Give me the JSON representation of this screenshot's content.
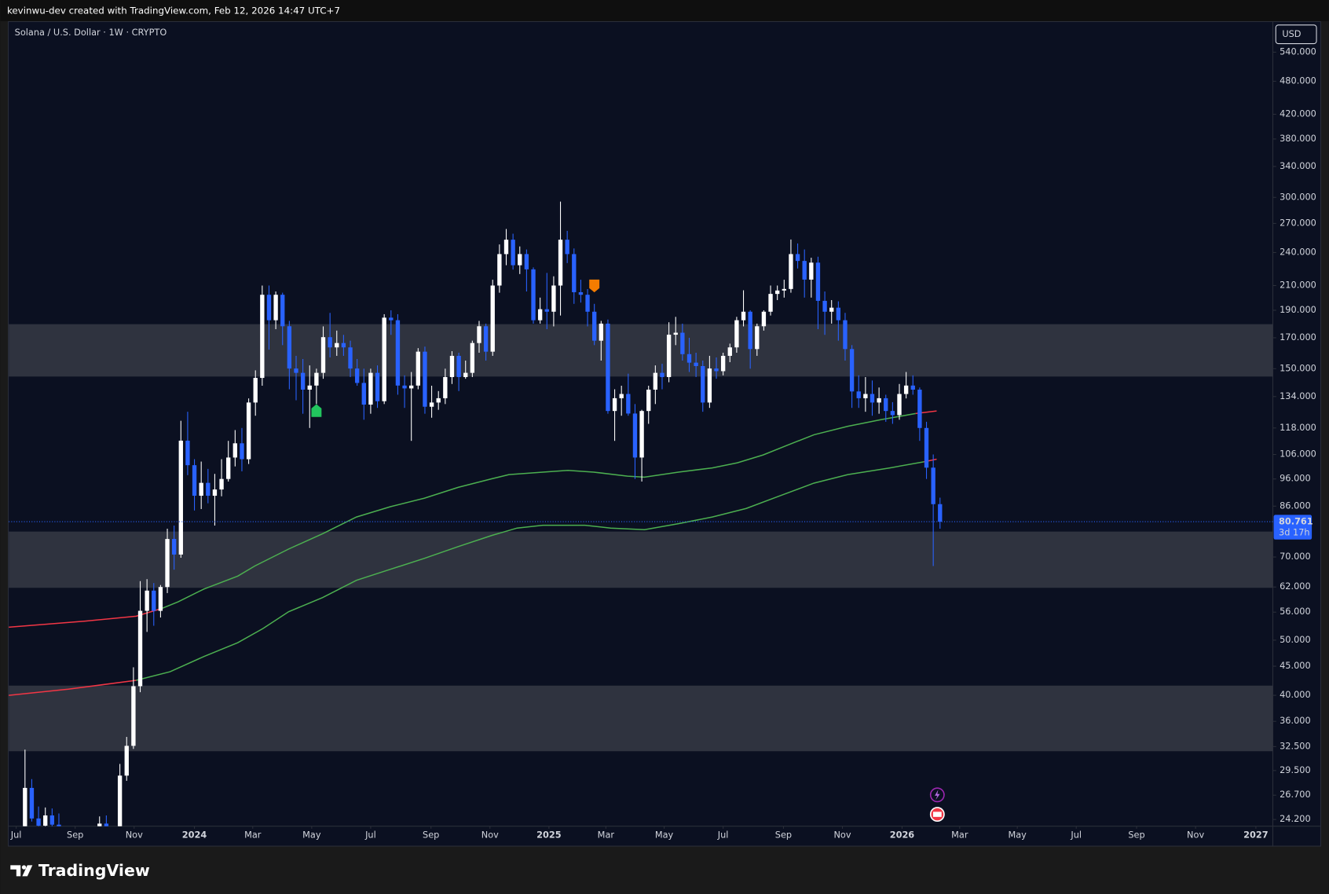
{
  "header": {
    "caption": "kevinwu-dev created with TradingView.com, Feb 12, 2026 14:47 UTC+7"
  },
  "footer": {
    "brand": "TradingView"
  },
  "chart_data": {
    "type": "candlestick",
    "title": "Solana / U.S. Dollar · 1W · CRYPTO",
    "currency": "USD",
    "log": true,
    "grid": false,
    "up_color": "#ffffff",
    "down_color": "#2962ff",
    "zone_color": "#2f333f",
    "ylim": [
      23.55,
      610
    ],
    "xlim": [
      -27.4,
      159.1
    ],
    "yticks": [
      {
        "value": 540,
        "label": "540.000"
      },
      {
        "value": 480,
        "label": "480.000"
      },
      {
        "value": 420,
        "label": "420.000"
      },
      {
        "value": 380,
        "label": "380.000"
      },
      {
        "value": 340,
        "label": "340.000"
      },
      {
        "value": 300,
        "label": "300.000"
      },
      {
        "value": 270,
        "label": "270.000"
      },
      {
        "value": 240,
        "label": "240.000"
      },
      {
        "value": 210,
        "label": "210.000"
      },
      {
        "value": 190,
        "label": "190.000"
      },
      {
        "value": 170,
        "label": "170.000"
      },
      {
        "value": 150,
        "label": "150.000"
      },
      {
        "value": 134,
        "label": "134.000"
      },
      {
        "value": 118,
        "label": "118.000"
      },
      {
        "value": 106,
        "label": "106.000"
      },
      {
        "value": 96,
        "label": "96.000"
      },
      {
        "value": 86,
        "label": "86.000"
      },
      {
        "value": 70,
        "label": "70.000"
      },
      {
        "value": 62,
        "label": "62.000"
      },
      {
        "value": 56,
        "label": "56.000"
      },
      {
        "value": 50,
        "label": "50.000"
      },
      {
        "value": 45,
        "label": "45.000"
      },
      {
        "value": 40,
        "label": "40.000"
      },
      {
        "value": 36,
        "label": "36.000"
      },
      {
        "value": 32.5,
        "label": "32.500"
      },
      {
        "value": 29.5,
        "label": "29.500"
      },
      {
        "value": 26.7,
        "label": "26.700"
      },
      {
        "value": 24.2,
        "label": "24.200"
      }
    ],
    "xticks": [
      {
        "value": -26.3,
        "label": "Jul"
      },
      {
        "value": -17.6,
        "label": "Sep"
      },
      {
        "value": -8.9,
        "label": "Nov"
      },
      {
        "value": 0,
        "label": "2024"
      },
      {
        "value": 8.6,
        "label": "Mar"
      },
      {
        "value": 17.3,
        "label": "May"
      },
      {
        "value": 26,
        "label": "Jul"
      },
      {
        "value": 34.9,
        "label": "Sep"
      },
      {
        "value": 43.6,
        "label": "Nov"
      },
      {
        "value": 52.3,
        "label": "2025"
      },
      {
        "value": 60.7,
        "label": "Mar"
      },
      {
        "value": 69.3,
        "label": "May"
      },
      {
        "value": 78,
        "label": "Jul"
      },
      {
        "value": 86.9,
        "label": "Sep"
      },
      {
        "value": 95.6,
        "label": "Nov"
      },
      {
        "value": 104.4,
        "label": "2026"
      },
      {
        "value": 112.9,
        "label": "Mar"
      },
      {
        "value": 121.4,
        "label": "May"
      },
      {
        "value": 130.1,
        "label": "Jul"
      },
      {
        "value": 139,
        "label": "Sep"
      },
      {
        "value": 147.7,
        "label": "Nov"
      },
      {
        "value": 156.6,
        "label": "2027"
      }
    ],
    "x": [
      -26,
      -25,
      -24,
      -23,
      -22,
      -21,
      -20,
      -19,
      -18,
      -17,
      -16,
      -15,
      -14,
      -13,
      -12,
      -11,
      -10,
      -9,
      -8,
      -7,
      -6,
      -5,
      -4,
      -3,
      -2,
      -1,
      0,
      1,
      2,
      3,
      4,
      5,
      6,
      7,
      8,
      9,
      10,
      11,
      12,
      13,
      14,
      15,
      16,
      17,
      18,
      19,
      20,
      21,
      22,
      23,
      24,
      25,
      26,
      27,
      28,
      29,
      30,
      31,
      32,
      33,
      34,
      35,
      36,
      37,
      38,
      39,
      40,
      41,
      42,
      43,
      44,
      45,
      46,
      47,
      48,
      49,
      50,
      51,
      52,
      53,
      54,
      55,
      56,
      57,
      58,
      59,
      60,
      61,
      62,
      63,
      64,
      65,
      66,
      67,
      68,
      69,
      70,
      71,
      72,
      73,
      74,
      75,
      76,
      77,
      78,
      79,
      80,
      81,
      82,
      83,
      84,
      85,
      86,
      87,
      88,
      89,
      90,
      91,
      92,
      93,
      94,
      95,
      96,
      97,
      98,
      99,
      100,
      101,
      102,
      103,
      104,
      105,
      106,
      107,
      108,
      109,
      110
    ],
    "open": [
      19.0,
      21.4,
      27.5,
      24.3,
      23.6,
      24.6,
      23.7,
      19.8,
      20.9,
      19.4,
      18.5,
      19.3,
      19.4,
      23.8,
      22.0,
      21.5,
      28.9,
      32.6,
      41.5,
      56.3,
      61.1,
      56.3,
      62.0,
      75.3,
      70.7,
      112.1,
      101.5,
      89.7,
      94.5,
      89.7,
      92.0,
      96.0,
      104.7,
      110.9,
      104.0,
      130.8,
      144.5,
      202.3,
      182.5,
      202.3,
      178.1,
      150.1,
      147.5,
      137.8,
      140.1,
      147.5,
      170.4,
      163.5,
      166.4,
      163.5,
      150.1,
      141.6,
      129.7,
      147.5,
      131.5,
      184.4,
      182.5,
      140.1,
      138.5,
      140.1,
      160.7,
      128.6,
      130.8,
      133.1,
      145.0,
      158.0,
      145.0,
      147.5,
      166.4,
      178.1,
      160.7,
      210.0,
      238.5,
      252.8,
      228.0,
      238.5,
      224.2,
      182.5,
      190.8,
      188.9,
      210.0,
      252.8,
      238.5,
      204.4,
      202.3,
      188.9,
      168.0,
      180.0,
      126.4,
      133.1,
      135.4,
      125.1,
      104.7,
      126.4,
      137.8,
      147.5,
      145.0,
      172.1,
      173.5,
      159.1,
      153.7,
      151.6,
      130.8,
      150.1,
      148.5,
      158.0,
      163.5,
      182.5,
      188.9,
      162.4,
      178.1,
      188.9,
      203.0,
      205.8,
      207.1,
      238.5,
      232.0,
      215.1,
      230.4,
      197.4,
      188.9,
      192.0,
      182.5,
      162.4,
      136.8,
      133.1,
      135.4,
      130.8,
      133.1,
      126.4,
      124.3,
      135.4,
      140.1,
      137.8,
      118.0,
      100.5,
      86.7
    ],
    "high": [
      22.0,
      32.1,
      28.5,
      25.5,
      25.4,
      25.3,
      24.8,
      22.0,
      22.4,
      20.0,
      19.6,
      20.6,
      24.5,
      24.6,
      22.6,
      30.3,
      33.8,
      44.8,
      63.5,
      64.0,
      63.0,
      62.5,
      78.5,
      79.5,
      121.5,
      126.0,
      104.0,
      103.0,
      100.0,
      98.0,
      104.0,
      112.0,
      117.0,
      118.0,
      133.0,
      149.0,
      210.0,
      210.0,
      205.0,
      204.0,
      182.0,
      158.0,
      156.0,
      152.0,
      150.0,
      178.0,
      188.0,
      175.0,
      172.0,
      168.0,
      156.0,
      150.0,
      150.0,
      152.0,
      187.0,
      190.0,
      187.0,
      146.0,
      148.0,
      163.0,
      164.0,
      140.0,
      137.0,
      150.0,
      161.0,
      160.0,
      155.0,
      168.0,
      182.0,
      180.0,
      215.0,
      248.0,
      264.0,
      259.0,
      246.0,
      243.0,
      226.0,
      200.0,
      221.0,
      218.0,
      295.0,
      262.0,
      244.0,
      215.0,
      207.0,
      195.0,
      182.0,
      183.0,
      138.0,
      140.0,
      147.0,
      130.0,
      127.0,
      140.0,
      152.0,
      153.0,
      181.0,
      185.0,
      180.0,
      170.0,
      160.0,
      155.0,
      158.0,
      157.0,
      160.0,
      166.0,
      185.0,
      206.0,
      190.0,
      180.0,
      190.0,
      210.0,
      210.0,
      215.0,
      253.0,
      249.0,
      243.0,
      235.0,
      236.0,
      205.0,
      198.0,
      197.0,
      188.0,
      165.0,
      146.0,
      145.0,
      143.0,
      139.0,
      135.0,
      131.0,
      141.0,
      148.0,
      146.0,
      139.0,
      121.0,
      106.0,
      89.0
    ],
    "low": [
      18.9,
      21.0,
      24.0,
      23.0,
      22.5,
      22.4,
      17.5,
      19.3,
      18.9,
      17.4,
      17.3,
      18.8,
      19.1,
      21.3,
      20.8,
      21.3,
      28.3,
      32.2,
      40.5,
      51.7,
      53.0,
      54.8,
      60.5,
      66.5,
      69.8,
      97.5,
      84.5,
      85.0,
      87.0,
      79.5,
      89.5,
      95.0,
      101.0,
      99.0,
      102.0,
      124.0,
      140.0,
      162.0,
      176.0,
      165.0,
      138.0,
      132.0,
      125.0,
      118.0,
      130.0,
      144.0,
      157.0,
      158.0,
      158.0,
      145.0,
      140.0,
      122.0,
      125.0,
      128.0,
      130.0,
      172.0,
      135.0,
      128.0,
      112.0,
      138.0,
      125.0,
      123.0,
      127.0,
      130.0,
      141.0,
      137.0,
      144.0,
      145.0,
      160.0,
      155.0,
      158.0,
      204.0,
      228.0,
      224.0,
      220.0,
      205.0,
      180.0,
      180.0,
      176.0,
      178.0,
      186.0,
      230.0,
      195.0,
      196.0,
      178.0,
      165.0,
      155.0,
      125.0,
      112.0,
      124.0,
      124.0,
      96.0,
      95.0,
      120.0,
      130.0,
      138.0,
      142.0,
      165.0,
      155.0,
      148.0,
      145.0,
      126.0,
      128.0,
      144.0,
      146.0,
      154.0,
      160.0,
      178.0,
      150.0,
      158.0,
      175.0,
      186.0,
      198.0,
      200.0,
      204.0,
      225.0,
      200.0,
      200.0,
      176.0,
      172.0,
      180.0,
      168.0,
      155.0,
      128.0,
      128.0,
      126.0,
      124.0,
      125.0,
      121.0,
      120.0,
      122.0,
      133.0,
      135.0,
      112.0,
      96.0,
      67.5,
      78.5
    ],
    "close": [
      21.4,
      27.5,
      24.3,
      23.6,
      24.6,
      23.7,
      19.8,
      20.9,
      19.4,
      18.5,
      19.3,
      19.4,
      23.8,
      22.0,
      21.5,
      28.9,
      32.6,
      41.5,
      56.3,
      61.1,
      56.3,
      62.0,
      75.3,
      70.7,
      112.1,
      101.5,
      89.7,
      94.5,
      89.7,
      92.0,
      96.0,
      104.7,
      110.9,
      104.0,
      130.8,
      144.5,
      202.3,
      182.5,
      202.3,
      178.1,
      150.1,
      147.5,
      137.8,
      140.1,
      147.5,
      170.4,
      163.5,
      166.4,
      163.5,
      150.1,
      141.6,
      129.7,
      147.5,
      131.5,
      184.4,
      182.5,
      140.1,
      138.5,
      140.1,
      160.7,
      128.6,
      130.8,
      133.1,
      145.0,
      158.0,
      145.0,
      147.5,
      166.4,
      178.1,
      160.7,
      210.0,
      238.5,
      252.8,
      228.0,
      238.5,
      224.2,
      182.5,
      190.8,
      188.9,
      210.0,
      252.8,
      238.5,
      204.4,
      202.3,
      188.9,
      168.0,
      180.0,
      126.4,
      133.1,
      135.4,
      125.1,
      104.7,
      126.4,
      137.8,
      147.5,
      145.0,
      172.1,
      173.5,
      159.1,
      153.7,
      151.6,
      130.8,
      150.1,
      148.5,
      158.0,
      163.5,
      182.5,
      188.9,
      162.4,
      178.1,
      188.9,
      203.0,
      205.8,
      207.1,
      238.5,
      232.0,
      215.1,
      230.4,
      197.4,
      188.9,
      192.0,
      182.5,
      162.4,
      136.8,
      133.1,
      135.4,
      130.8,
      133.1,
      126.4,
      124.3,
      135.4,
      140.1,
      137.8,
      118.0,
      100.5,
      86.7,
      80.761
    ],
    "lines": [
      {
        "color": "#f23645",
        "x": [
          -27.4,
          -16.1,
          -8.6,
          -4.9
        ],
        "values": [
          52.7,
          54.0,
          55.1,
          56.8
        ]
      },
      {
        "color": "#4caf50",
        "x": [
          -4.9,
          -2.4,
          1.4,
          6.4,
          8.9,
          13.9,
          18.9,
          23.9,
          28.9,
          33.9,
          38.9,
          43.9,
          46.4,
          51.4,
          55.1,
          58.9,
          63.9,
          66.4,
          71.4,
          76.4,
          80.1,
          83.9,
          87.6,
          91.4,
          96.4,
          101.4,
          106.4
        ],
        "values": [
          56.8,
          58.4,
          61.5,
          64.8,
          67.5,
          72.3,
          76.9,
          82.3,
          85.8,
          88.8,
          92.8,
          96.1,
          97.7,
          98.7,
          99.4,
          98.7,
          97.1,
          96.7,
          98.7,
          100.4,
          102.5,
          105.8,
          110.2,
          114.8,
          118.8,
          122.1,
          125.1
        ]
      },
      {
        "color": "#f23645",
        "x": [
          106.4,
          109.5
        ],
        "values": [
          125.1,
          126.4
        ]
      },
      {
        "color": "#f23645",
        "x": [
          -27.4,
          -18.6,
          -8.6
        ],
        "values": [
          40.0,
          41.0,
          42.5
        ]
      },
      {
        "color": "#4caf50",
        "x": [
          -8.6,
          -3.6,
          1.4,
          6.4,
          10.1,
          13.9,
          18.9,
          23.9,
          28.9,
          33.9,
          38.9,
          43.9,
          47.6,
          51.4,
          57.6,
          61.4,
          66.4,
          71.4,
          76.4,
          81.4,
          86.4,
          91.4,
          96.4,
          102.6,
          107.6
        ],
        "values": [
          42.5,
          44.0,
          46.8,
          49.5,
          52.4,
          56.1,
          59.4,
          63.7,
          66.6,
          69.6,
          73.0,
          76.4,
          78.7,
          79.6,
          79.6,
          78.7,
          78.2,
          80.1,
          82.3,
          85.2,
          89.7,
          94.4,
          97.7,
          100.4,
          102.9
        ]
      },
      {
        "color": "#f23645",
        "x": [
          107.6,
          109.5
        ],
        "values": [
          102.9,
          104.0
        ]
      }
    ],
    "zones": [
      {
        "low": 145.3,
        "high": 179.6
      },
      {
        "low": 61.8,
        "high": 77.6
      },
      {
        "low": 31.9,
        "high": 41.6
      }
    ],
    "markers": [
      {
        "x": 18,
        "price": 126.4,
        "shape": "up",
        "color": "#22c55e"
      },
      {
        "x": 59,
        "price": 210,
        "shape": "down",
        "color": "#f57c00"
      }
    ],
    "last_price": 80.761,
    "countdown": "3d 17h"
  }
}
